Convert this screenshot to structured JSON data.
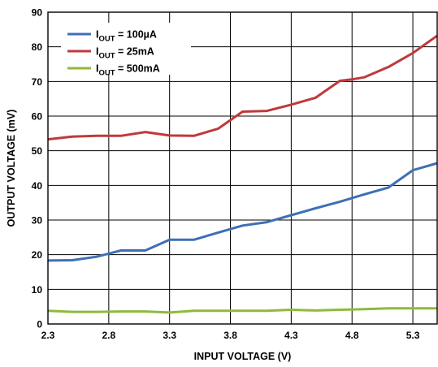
{
  "chart_data": {
    "type": "line",
    "title": "",
    "xlabel": "INPUT VOLTAGE (V)",
    "ylabel": "OUTPUT VOLTAGE (mV)",
    "xlim": [
      2.3,
      5.5
    ],
    "ylim": [
      0,
      90
    ],
    "xticks": [
      "2.3",
      "2.8",
      "3.3",
      "3.8",
      "4.3",
      "4.8",
      "5.3"
    ],
    "xtick_values": [
      2.3,
      2.8,
      3.3,
      3.8,
      4.3,
      4.8,
      5.3
    ],
    "yticks": [
      "0",
      "10",
      "20",
      "30",
      "40",
      "50",
      "60",
      "70",
      "80",
      "90"
    ],
    "ytick_values": [
      0,
      10,
      20,
      30,
      40,
      50,
      60,
      70,
      80,
      90
    ],
    "grid": true,
    "legend_position": "top-left",
    "series": [
      {
        "name_main": "I",
        "name_sub": "OUT",
        "name_tail": " = 100µA",
        "color": "#3d6fb6",
        "x": [
          2.3,
          2.5,
          2.7,
          2.9,
          3.1,
          3.3,
          3.5,
          3.7,
          3.9,
          4.1,
          4.3,
          4.5,
          4.7,
          4.9,
          5.1,
          5.3,
          5.5
        ],
        "y": [
          18.3,
          18.4,
          19.4,
          21.2,
          21.2,
          24.3,
          24.3,
          26.4,
          28.4,
          29.4,
          31.4,
          33.4,
          35.3,
          37.4,
          39.4,
          44.4,
          46.4
        ]
      },
      {
        "name_main": "I",
        "name_sub": "OUT",
        "name_tail": " = 25mA",
        "color": "#c0393b",
        "x": [
          2.3,
          2.5,
          2.7,
          2.9,
          3.1,
          3.3,
          3.5,
          3.7,
          3.9,
          4.1,
          4.3,
          4.5,
          4.7,
          4.8,
          4.9,
          5.1,
          5.3,
          5.5
        ],
        "y": [
          53.3,
          54.1,
          54.3,
          54.3,
          55.4,
          54.4,
          54.3,
          56.4,
          61.3,
          61.5,
          63.3,
          65.3,
          70.2,
          70.6,
          71.2,
          74.2,
          78.2,
          83.2
        ]
      },
      {
        "name_main": "I",
        "name_sub": "OUT",
        "name_tail": " = 500mA",
        "color": "#8fba3c",
        "x": [
          2.3,
          2.5,
          2.7,
          2.9,
          3.1,
          3.3,
          3.5,
          3.7,
          3.9,
          4.1,
          4.3,
          4.5,
          4.7,
          4.9,
          5.1,
          5.3,
          5.5
        ],
        "y": [
          3.8,
          3.5,
          3.5,
          3.6,
          3.6,
          3.3,
          3.8,
          3.8,
          3.8,
          3.8,
          4.1,
          3.9,
          4.1,
          4.3,
          4.5,
          4.5,
          4.5
        ]
      }
    ]
  }
}
